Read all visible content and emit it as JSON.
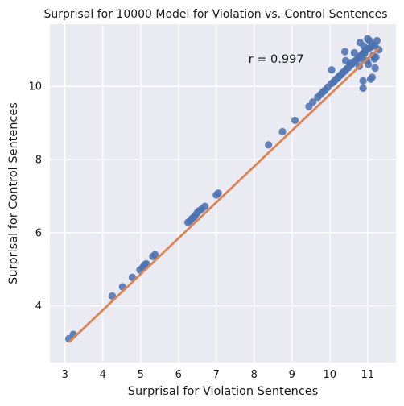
{
  "chart_data": {
    "type": "scatter",
    "title": "Surprisal for 10000 Model for Violation vs. Control Sentences",
    "xlabel": "Surprisal for Violation Sentences",
    "ylabel": "Surprisal for Control Sentences",
    "annotation": "r = 0.997",
    "annotation_pos": {
      "x": 7.85,
      "y": 10.75
    },
    "xlim": [
      2.6,
      11.75
    ],
    "ylim": [
      2.45,
      11.7
    ],
    "xticks": [
      3,
      4,
      5,
      6,
      7,
      8,
      9,
      10,
      11
    ],
    "yticks": [
      4,
      6,
      8,
      10
    ],
    "grid": true,
    "colors": {
      "background": "#eaeaf2",
      "grid": "#ffffff",
      "points": "#4c72b0",
      "fit_line": "#dd8452"
    },
    "fit_line": {
      "x": [
        3.1,
        11.3
      ],
      "y": [
        3.0,
        11.05
      ]
    },
    "points": [
      [
        3.1,
        3.1
      ],
      [
        3.22,
        3.22
      ],
      [
        4.25,
        4.27
      ],
      [
        4.52,
        4.52
      ],
      [
        4.78,
        4.78
      ],
      [
        4.98,
        4.98
      ],
      [
        5.05,
        5.05
      ],
      [
        5.1,
        5.12
      ],
      [
        5.15,
        5.15
      ],
      [
        5.32,
        5.35
      ],
      [
        5.38,
        5.4
      ],
      [
        6.25,
        6.28
      ],
      [
        6.3,
        6.32
      ],
      [
        6.35,
        6.38
      ],
      [
        6.4,
        6.42
      ],
      [
        6.45,
        6.48
      ],
      [
        6.5,
        6.55
      ],
      [
        6.55,
        6.6
      ],
      [
        6.62,
        6.65
      ],
      [
        6.7,
        6.72
      ],
      [
        7.0,
        7.03
      ],
      [
        7.05,
        7.08
      ],
      [
        8.38,
        8.4
      ],
      [
        8.75,
        8.76
      ],
      [
        9.08,
        9.07
      ],
      [
        9.45,
        9.45
      ],
      [
        9.55,
        9.57
      ],
      [
        9.68,
        9.7
      ],
      [
        9.75,
        9.77
      ],
      [
        9.82,
        9.85
      ],
      [
        9.88,
        9.9
      ],
      [
        9.95,
        9.98
      ],
      [
        10.05,
        10.08
      ],
      [
        10.1,
        10.12
      ],
      [
        10.15,
        10.18
      ],
      [
        10.2,
        10.22
      ],
      [
        10.25,
        10.28
      ],
      [
        10.3,
        10.32
      ],
      [
        10.35,
        10.38
      ],
      [
        10.4,
        10.42
      ],
      [
        10.45,
        10.48
      ],
      [
        10.5,
        10.52
      ],
      [
        10.55,
        10.58
      ],
      [
        10.6,
        10.62
      ],
      [
        10.65,
        10.68
      ],
      [
        10.7,
        10.72
      ],
      [
        10.75,
        10.78
      ],
      [
        10.8,
        10.82
      ],
      [
        10.85,
        10.88
      ],
      [
        10.9,
        10.92
      ],
      [
        10.95,
        10.98
      ],
      [
        11.0,
        11.02
      ],
      [
        11.05,
        11.05
      ],
      [
        11.1,
        11.08
      ],
      [
        11.15,
        11.1
      ],
      [
        11.2,
        11.12
      ],
      [
        10.05,
        10.45
      ],
      [
        10.4,
        10.95
      ],
      [
        10.42,
        10.7
      ],
      [
        10.55,
        10.65
      ],
      [
        10.65,
        10.92
      ],
      [
        10.78,
        10.55
      ],
      [
        10.8,
        11.2
      ],
      [
        10.85,
        10.75
      ],
      [
        10.88,
        10.15
      ],
      [
        10.88,
        9.95
      ],
      [
        10.9,
        11.1
      ],
      [
        10.92,
        10.9
      ],
      [
        10.95,
        11.0
      ],
      [
        10.98,
        10.7
      ],
      [
        11.0,
        11.3
      ],
      [
        11.02,
        10.6
      ],
      [
        11.05,
        11.25
      ],
      [
        11.08,
        10.2
      ],
      [
        11.12,
        10.25
      ],
      [
        11.12,
        11.15
      ],
      [
        11.15,
        10.85
      ],
      [
        11.18,
        10.75
      ],
      [
        11.2,
        10.5
      ],
      [
        11.22,
        10.8
      ],
      [
        11.25,
        11.25
      ],
      [
        11.3,
        11.0
      ]
    ]
  }
}
